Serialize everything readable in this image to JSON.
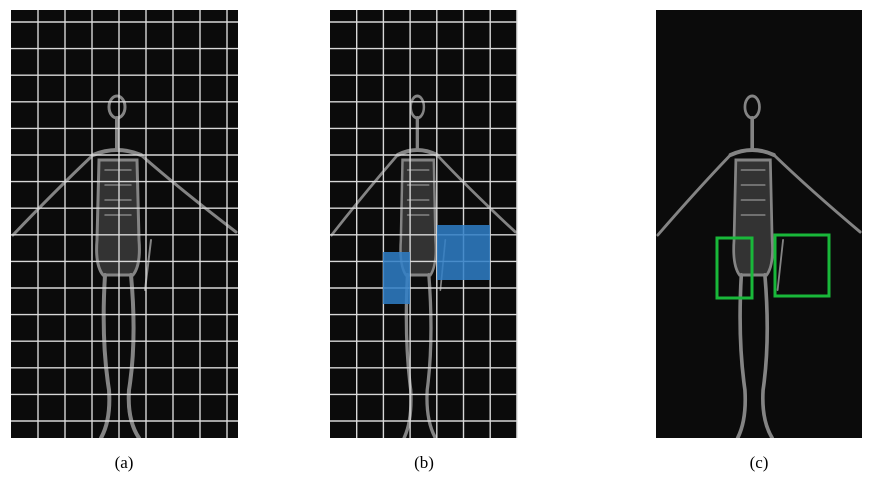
{
  "panels": [
    {
      "label": "(a)"
    },
    {
      "label": "(b)"
    },
    {
      "label": "(c)"
    }
  ]
}
